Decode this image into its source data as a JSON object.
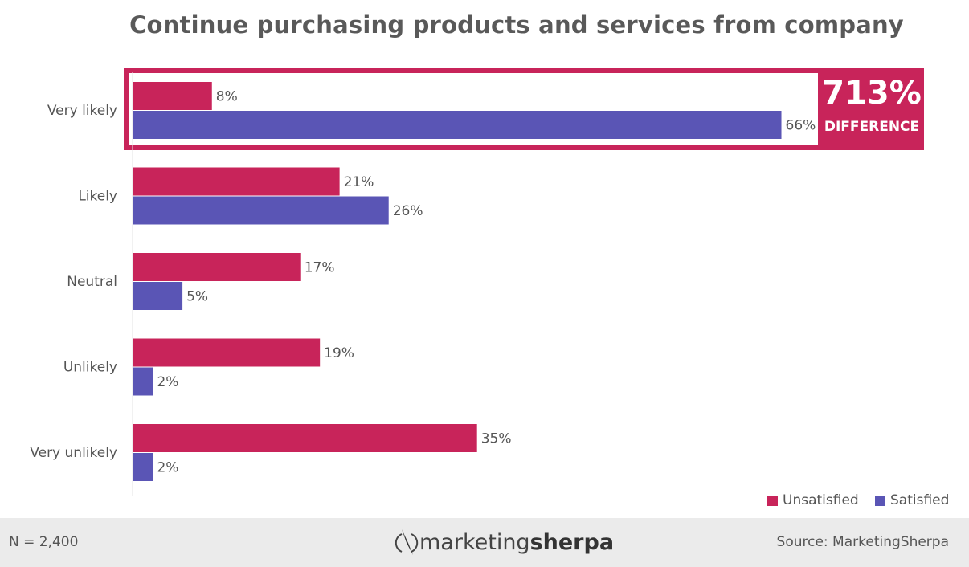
{
  "chart_data": {
    "type": "bar",
    "orientation": "horizontal",
    "title": "Continue purchasing products and services from company",
    "categories": [
      "Very likely",
      "Likely",
      "Neutral",
      "Unlikely",
      "Very unlikely"
    ],
    "series": [
      {
        "name": "Unsatisfied",
        "color": "#c8245a",
        "values": [
          8,
          21,
          17,
          19,
          35
        ],
        "labels": [
          "8%",
          "21%",
          "17%",
          "19%",
          "35%"
        ]
      },
      {
        "name": "Satisfied",
        "color": "#5a55b5",
        "values": [
          66,
          26,
          5,
          2,
          2
        ],
        "labels": [
          "66%",
          "26%",
          "5%",
          "2%",
          "2%"
        ]
      }
    ],
    "unit": "%",
    "legend": "bottom-right",
    "grid": false,
    "annotation": {
      "value": "713%",
      "label": "DIFFERENCE",
      "category": "Very likely",
      "color": "#c8245a"
    }
  },
  "footer": {
    "n": "N = 2,400",
    "logo_light": "marketing",
    "logo_bold": "sherpa",
    "source": "Source: MarketingSherpa"
  }
}
